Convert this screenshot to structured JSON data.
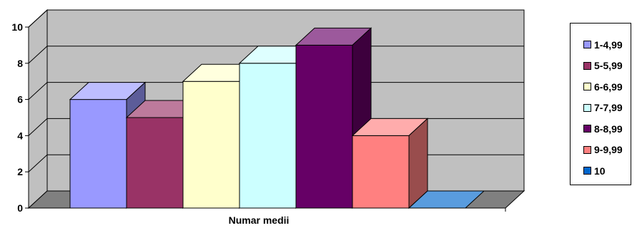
{
  "chart_data": {
    "type": "bar",
    "style": "3d-column",
    "title": "",
    "xlabel": "Numar medii",
    "ylabel": "",
    "ylim": [
      0,
      10
    ],
    "y_ticks": [
      "0",
      "2",
      "4",
      "6",
      "8",
      "10"
    ],
    "grid": true,
    "legend_position": "right",
    "series": [
      {
        "name": "1-4,99",
        "value": 6,
        "color": "#9999FF"
      },
      {
        "name": "5-5,99",
        "value": 5,
        "color": "#993366"
      },
      {
        "name": "6-6,99",
        "value": 7,
        "color": "#FFFFCC"
      },
      {
        "name": "7-7,99",
        "value": 8,
        "color": "#CCFFFF"
      },
      {
        "name": "8-8,99",
        "value": 9,
        "color": "#660066"
      },
      {
        "name": "9-9,99",
        "value": 4,
        "color": "#FF8080"
      },
      {
        "name": "10",
        "value": 0,
        "color": "#0066CC"
      }
    ]
  }
}
